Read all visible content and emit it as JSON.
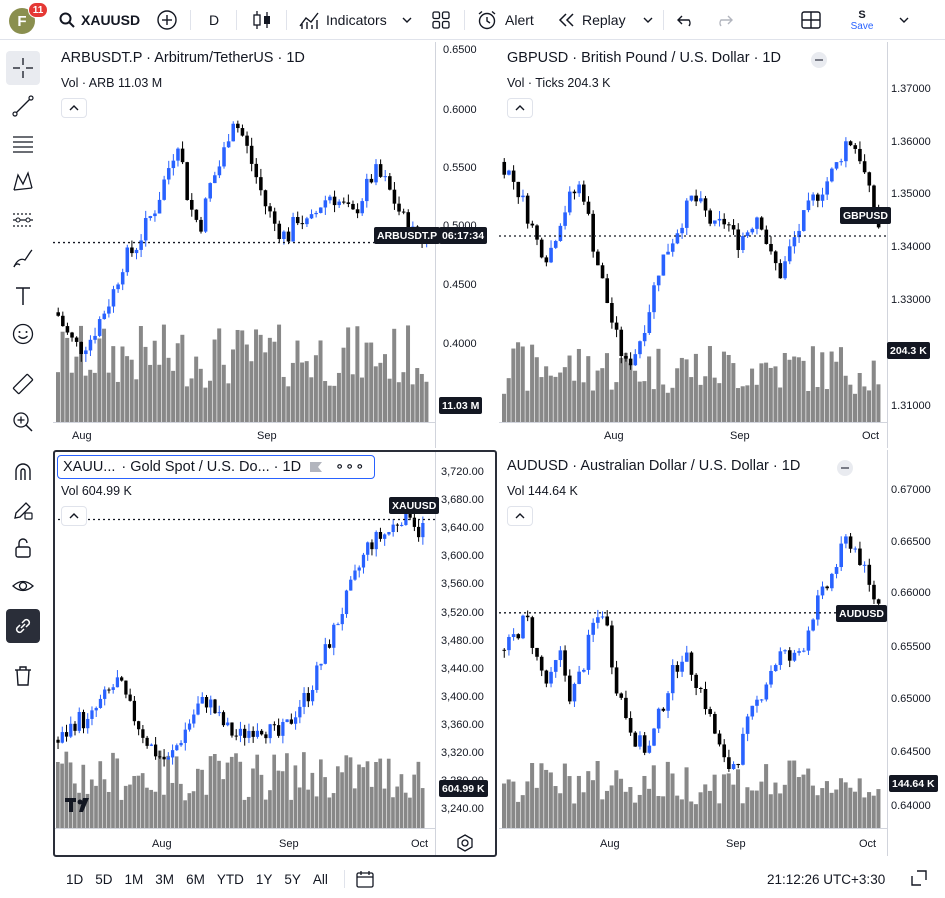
{
  "header": {
    "avatar_letter": "F",
    "notification_count": "11",
    "symbol": "XAUUSD",
    "interval": "D",
    "indicators_label": "Indicators",
    "alert_label": "Alert",
    "replay_label": "Replay",
    "save_top": "S",
    "save_label": "Save"
  },
  "charts": [
    {
      "id": "arb",
      "title": "ARBUSDT.P · Arbitrum/TetherUS · 1D",
      "volume_legend": "Vol · ARB  11.03 M",
      "price_ticks": [
        "0.6500",
        "0.6000",
        "0.5500",
        "0.5000",
        "0.4500",
        "0.4000"
      ],
      "time_ticks": [
        "Aug",
        "Sep"
      ],
      "symbol_label": "ARBUSDT.P",
      "countdown_label": "06:17:34",
      "volume_label": "11.03 M",
      "chart_data": {
        "type": "candlestick",
        "price_range": [
          0.36,
          0.66
        ],
        "last_price": 0.486,
        "approx_close_series": [
          0.42,
          0.4,
          0.39,
          0.4,
          0.42,
          0.44,
          0.47,
          0.48,
          0.5,
          0.52,
          0.55,
          0.58,
          0.52,
          0.5,
          0.54,
          0.56,
          0.6,
          0.58,
          0.55,
          0.52,
          0.5,
          0.49,
          0.51,
          0.5,
          0.52,
          0.53,
          0.52,
          0.51,
          0.53,
          0.55,
          0.54,
          0.52,
          0.5,
          0.49,
          0.49
        ]
      }
    },
    {
      "id": "gbp",
      "title": "GBPUSD · British Pound / U.S. Dollar · 1D",
      "volume_legend": "Vol · Ticks  204.3 K",
      "price_ticks": [
        "1.37000",
        "1.36000",
        "1.35000",
        "1.34000",
        "1.33000",
        "1.31000"
      ],
      "time_ticks": [
        "Aug",
        "Sep",
        "Oct"
      ],
      "symbol_label": "GBPUSD",
      "volume_label": "204.3 K",
      "chart_data": {
        "type": "candlestick",
        "price_range": [
          1.308,
          1.378
        ],
        "last_price": 1.3465,
        "approx_close_series": [
          1.362,
          1.358,
          1.352,
          1.345,
          1.342,
          1.35,
          1.355,
          1.358,
          1.345,
          1.335,
          1.325,
          1.318,
          1.322,
          1.33,
          1.34,
          1.345,
          1.35,
          1.355,
          1.352,
          1.348,
          1.35,
          1.345,
          1.348,
          1.352,
          1.342,
          1.338,
          1.345,
          1.35,
          1.355,
          1.358,
          1.362,
          1.368,
          1.365,
          1.355,
          1.347
        ]
      }
    },
    {
      "id": "xau",
      "title_symbol": "XAUU...",
      "title_rest": "· Gold Spot / U.S. Do...  · 1D",
      "volume_legend": "Vol  604.99 K",
      "price_ticks": [
        "3,720.00",
        "3,680.00",
        "3,640.00",
        "3,600.00",
        "3,560.00",
        "3,520.00",
        "3,480.00",
        "3,440.00",
        "3,400.00",
        "3,360.00",
        "3,320.00",
        "3,280.00",
        "3,240.00"
      ],
      "time_ticks": [
        "Aug",
        "Sep",
        "Oct"
      ],
      "symbol_label": "XAUUSD",
      "volume_label": "604.99 K",
      "chart_data": {
        "type": "candlestick",
        "price_range": [
          3228,
          3734
        ],
        "last_price": 3680,
        "approx_close_series": [
          3320,
          3340,
          3360,
          3350,
          3380,
          3400,
          3420,
          3380,
          3350,
          3320,
          3300,
          3290,
          3320,
          3350,
          3380,
          3390,
          3360,
          3340,
          3330,
          3340,
          3350,
          3340,
          3330,
          3350,
          3380,
          3400,
          3440,
          3480,
          3520,
          3560,
          3600,
          3640,
          3650,
          3660,
          3680,
          3700,
          3660,
          3680
        ]
      }
    },
    {
      "id": "aud",
      "title": "AUDUSD · Australian Dollar / U.S. Dollar · 1D",
      "volume_legend": "Vol  144.64 K",
      "price_ticks": [
        "0.67000",
        "0.66500",
        "0.66000",
        "0.65500",
        "0.65000",
        "0.64500",
        "0.64000"
      ],
      "time_ticks": [
        "Aug",
        "Sep",
        "Oct"
      ],
      "symbol_label": "AUDUSD",
      "volume_label": "144.64 K",
      "chart_data": {
        "type": "candlestick",
        "price_range": [
          0.6385,
          0.6735
        ],
        "last_price": 0.6595,
        "approx_close_series": [
          0.655,
          0.657,
          0.659,
          0.654,
          0.651,
          0.655,
          0.65,
          0.653,
          0.658,
          0.66,
          0.652,
          0.648,
          0.645,
          0.644,
          0.648,
          0.652,
          0.655,
          0.653,
          0.65,
          0.646,
          0.642,
          0.643,
          0.647,
          0.65,
          0.653,
          0.655,
          0.654,
          0.656,
          0.66,
          0.662,
          0.665,
          0.668,
          0.666,
          0.662,
          0.66
        ]
      }
    }
  ],
  "bottom": {
    "ranges": [
      "1D",
      "5D",
      "1M",
      "3M",
      "6M",
      "YTD",
      "1Y",
      "5Y",
      "All"
    ],
    "clock": "21:12:26 UTC+3:30"
  }
}
